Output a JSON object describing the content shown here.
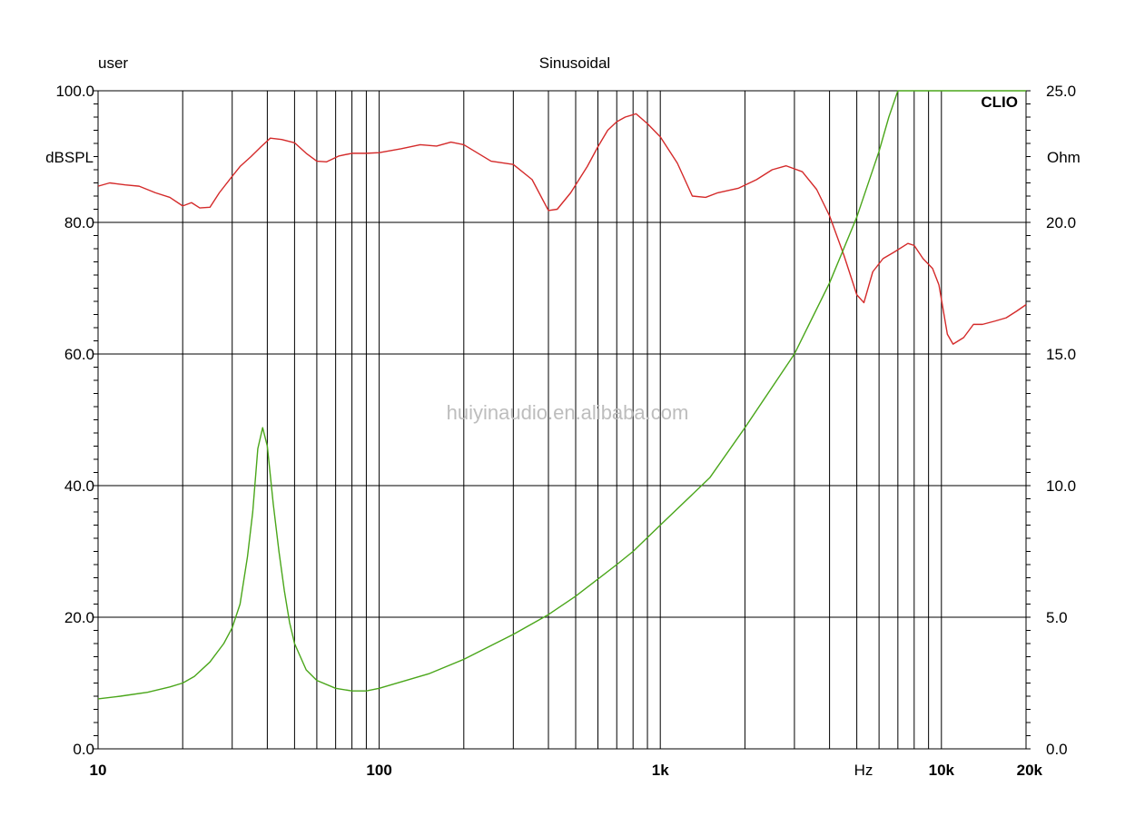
{
  "chart_data": {
    "type": "line",
    "title": "Sinusoidal",
    "top_left_label": "user",
    "brand": "CLIO",
    "watermark": "huiyinaudio.en.alibaba.com",
    "x_axis": {
      "scale": "log",
      "range": [
        10,
        20000
      ],
      "unit_label": "Hz",
      "tick_labels": [
        {
          "value": 10,
          "label": "10"
        },
        {
          "value": 100,
          "label": "100"
        },
        {
          "value": 1000,
          "label": "1k"
        },
        {
          "value": 10000,
          "label": "10k"
        },
        {
          "value": 20000,
          "label": "20k"
        }
      ],
      "gridlines": [
        20,
        30,
        40,
        50,
        60,
        70,
        80,
        90,
        100,
        200,
        300,
        400,
        500,
        600,
        700,
        800,
        900,
        1000,
        2000,
        3000,
        4000,
        5000,
        6000,
        7000,
        8000,
        9000,
        10000
      ]
    },
    "y_left": {
      "label": "dBSPL",
      "range": [
        0,
        100
      ],
      "ticks": [
        0,
        20,
        40,
        60,
        80,
        100
      ],
      "tick_labels": [
        "0.0",
        "20.0",
        "40.0",
        "60.0",
        "80.0",
        "100.0"
      ]
    },
    "y_right": {
      "label": "Ohm",
      "range": [
        0,
        25
      ],
      "ticks": [
        0,
        5,
        10,
        15,
        20,
        25
      ],
      "tick_labels": [
        "0.0",
        "5.0",
        "10.0",
        "15.0",
        "20.0",
        "25.0"
      ]
    },
    "series": [
      {
        "axis": "left",
        "color": "#d42a2a",
        "points": [
          [
            10,
            85.5
          ],
          [
            11,
            86
          ],
          [
            12.5,
            85.7
          ],
          [
            14,
            85.5
          ],
          [
            16,
            84.5
          ],
          [
            18,
            83.8
          ],
          [
            20,
            82.5
          ],
          [
            21.5,
            83
          ],
          [
            23,
            82.2
          ],
          [
            25,
            82.3
          ],
          [
            27,
            84.5
          ],
          [
            30,
            87
          ],
          [
            32,
            88.5
          ],
          [
            35,
            90
          ],
          [
            38,
            91.5
          ],
          [
            41,
            92.8
          ],
          [
            45,
            92.6
          ],
          [
            50,
            92.1
          ],
          [
            55,
            90.5
          ],
          [
            60,
            89.3
          ],
          [
            65,
            89.2
          ],
          [
            72,
            90.1
          ],
          [
            80,
            90.5
          ],
          [
            90,
            90.5
          ],
          [
            100,
            90.6
          ],
          [
            120,
            91.2
          ],
          [
            140,
            91.8
          ],
          [
            160,
            91.6
          ],
          [
            180,
            92.2
          ],
          [
            200,
            91.8
          ],
          [
            250,
            89.3
          ],
          [
            300,
            88.8
          ],
          [
            350,
            86.5
          ],
          [
            400,
            81.8
          ],
          [
            430,
            82
          ],
          [
            480,
            84.5
          ],
          [
            550,
            88.5
          ],
          [
            600,
            91.5
          ],
          [
            650,
            94
          ],
          [
            700,
            95.3
          ],
          [
            750,
            96
          ],
          [
            820,
            96.5
          ],
          [
            900,
            95
          ],
          [
            1000,
            93
          ],
          [
            1150,
            89
          ],
          [
            1300,
            84
          ],
          [
            1450,
            83.8
          ],
          [
            1600,
            84.5
          ],
          [
            1900,
            85.2
          ],
          [
            2200,
            86.5
          ],
          [
            2500,
            88
          ],
          [
            2800,
            88.6
          ],
          [
            3200,
            87.7
          ],
          [
            3600,
            85
          ],
          [
            4000,
            81
          ],
          [
            4500,
            75
          ],
          [
            5000,
            69
          ],
          [
            5300,
            67.8
          ],
          [
            5700,
            72.5
          ],
          [
            6200,
            74.5
          ],
          [
            6800,
            75.5
          ],
          [
            7600,
            76.8
          ],
          [
            8000,
            76.5
          ],
          [
            8600,
            74.5
          ],
          [
            9300,
            73
          ],
          [
            9800,
            70.5
          ],
          [
            10500,
            63
          ],
          [
            11000,
            61.5
          ],
          [
            12000,
            62.5
          ],
          [
            13000,
            64.5
          ],
          [
            14000,
            64.5
          ],
          [
            15500,
            65
          ],
          [
            17000,
            65.5
          ],
          [
            18500,
            66.5
          ],
          [
            20000,
            67.5
          ]
        ]
      },
      {
        "axis": "right",
        "color": "#4aa61a",
        "points": [
          [
            10,
            1.9
          ],
          [
            12,
            2.0
          ],
          [
            15,
            2.15
          ],
          [
            18,
            2.35
          ],
          [
            20,
            2.5
          ],
          [
            22,
            2.75
          ],
          [
            25,
            3.3
          ],
          [
            28,
            4.0
          ],
          [
            30,
            4.6
          ],
          [
            32,
            5.5
          ],
          [
            34,
            7.3
          ],
          [
            35.5,
            9.0
          ],
          [
            37,
            11.4
          ],
          [
            38.5,
            12.2
          ],
          [
            40,
            11.5
          ],
          [
            42,
            9.3
          ],
          [
            44,
            7.5
          ],
          [
            46,
            6.0
          ],
          [
            48,
            4.8
          ],
          [
            50,
            4.0
          ],
          [
            55,
            3.0
          ],
          [
            60,
            2.6
          ],
          [
            70,
            2.3
          ],
          [
            80,
            2.2
          ],
          [
            90,
            2.2
          ],
          [
            100,
            2.3
          ],
          [
            150,
            2.85
          ],
          [
            200,
            3.4
          ],
          [
            300,
            4.35
          ],
          [
            400,
            5.1
          ],
          [
            500,
            5.8
          ],
          [
            600,
            6.45
          ],
          [
            700,
            7.0
          ],
          [
            800,
            7.5
          ],
          [
            1000,
            8.5
          ],
          [
            1500,
            10.3
          ],
          [
            2000,
            12.2
          ],
          [
            3000,
            15.0
          ],
          [
            4000,
            17.7
          ],
          [
            5000,
            20.2
          ],
          [
            6000,
            22.7
          ],
          [
            6500,
            24.0
          ],
          [
            7000,
            25.0
          ]
        ]
      }
    ]
  }
}
